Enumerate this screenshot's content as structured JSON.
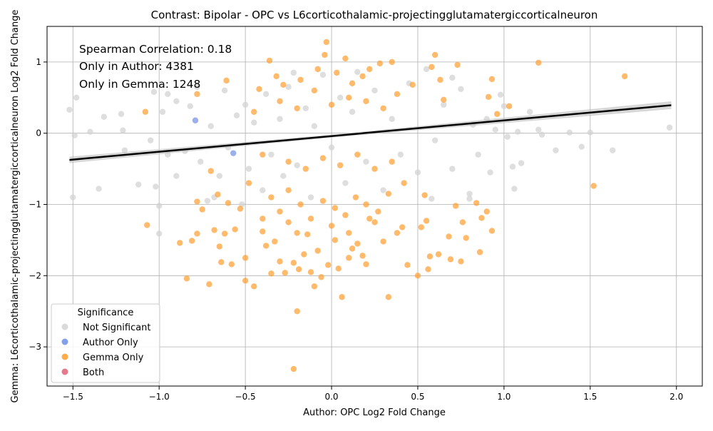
{
  "chart_data": {
    "type": "scatter",
    "title": "Contrast: Bipolar - OPC vs L6corticothalamic-projectingglutamatergiccorticalneuron",
    "xlabel": "Author: OPC Log2 Fold Change",
    "ylabel": "Gemma: L6corticothalamic-projectingglutamatergiccorticalneuron Log2 Fold Change",
    "xlim": [
      -1.65,
      2.15
    ],
    "ylim": [
      -3.55,
      1.5
    ],
    "xticks": [
      -1.5,
      -1.0,
      -0.5,
      0.0,
      0.5,
      1.0,
      1.5,
      2.0
    ],
    "xtick_labels": [
      "−1.5",
      "−1.0",
      "−0.5",
      "0.0",
      "0.5",
      "1.0",
      "1.5",
      "2.0"
    ],
    "yticks": [
      -3,
      -2,
      -1,
      0,
      1
    ],
    "ytick_labels": [
      "−3",
      "−2",
      "−1",
      "0",
      "1"
    ],
    "grid": true,
    "annotations": [
      "Spearman Correlation: 0.18",
      "Only in Author: 4381",
      "Only in Gemma: 1248"
    ],
    "legend": {
      "title": "Significance",
      "placement": "lower-left",
      "entries": [
        {
          "label": "Not Significant",
          "color": "#d3d3d3"
        },
        {
          "label": "Author Only",
          "color": "#6f8fe6"
        },
        {
          "label": "Gemma Only",
          "color": "#ff9d2e"
        },
        {
          "label": "Both",
          "color": "#e06377"
        }
      ]
    },
    "regression": {
      "slope": 0.22,
      "intercept": -0.04,
      "x_range": [
        -1.52,
        1.97
      ],
      "color": "#000000",
      "band_color": "#bdbdbd"
    },
    "series": [
      {
        "name": "Not Significant",
        "color": "#d3d3d3",
        "points": [
          [
            -1.52,
            0.33
          ],
          [
            -1.48,
            0.5
          ],
          [
            -1.5,
            -0.9
          ],
          [
            -1.49,
            -0.03
          ],
          [
            -1.4,
            0.02
          ],
          [
            -1.32,
            0.23
          ],
          [
            -1.35,
            -0.78
          ],
          [
            -1.22,
            0.27
          ],
          [
            -1.21,
            0.04
          ],
          [
            -1.2,
            -0.24
          ],
          [
            -1.12,
            -0.72
          ],
          [
            -1.05,
            -0.1
          ],
          [
            -1.03,
            0.58
          ],
          [
            -1.02,
            -0.75
          ],
          [
            -1.0,
            -1.02
          ],
          [
            -1.0,
            -1.41
          ],
          [
            -0.98,
            0.3
          ],
          [
            -0.95,
            -0.3
          ],
          [
            -0.9,
            0.45
          ],
          [
            -0.85,
            -0.25
          ],
          [
            -0.82,
            0.38
          ],
          [
            -0.78,
            0.65
          ],
          [
            -0.76,
            -0.4
          ],
          [
            -0.7,
            0.1
          ],
          [
            -0.68,
            -0.9
          ],
          [
            -0.65,
            -0.6
          ],
          [
            -0.62,
            0.6
          ],
          [
            -0.6,
            -0.2
          ],
          [
            -0.55,
            0.25
          ],
          [
            -0.52,
            -1.0
          ],
          [
            -0.5,
            0.4
          ],
          [
            -0.48,
            -0.5
          ],
          [
            -0.45,
            0.15
          ],
          [
            -0.4,
            -0.8
          ],
          [
            -0.38,
            0.55
          ],
          [
            -0.35,
            -0.3
          ],
          [
            -0.3,
            0.2
          ],
          [
            -0.28,
            -0.6
          ],
          [
            -0.25,
            0.65
          ],
          [
            -0.22,
            0.85
          ],
          [
            -0.2,
            -0.45
          ],
          [
            -0.15,
            0.35
          ],
          [
            -0.12,
            -0.9
          ],
          [
            -0.1,
            0.1
          ],
          [
            -0.05,
            0.82
          ],
          [
            0.0,
            -0.2
          ],
          [
            0.05,
            0.5
          ],
          [
            0.08,
            -0.7
          ],
          [
            0.12,
            0.3
          ],
          [
            0.15,
            0.86
          ],
          [
            0.2,
            -0.4
          ],
          [
            0.25,
            0.6
          ],
          [
            0.3,
            -0.8
          ],
          [
            0.35,
            0.2
          ],
          [
            0.4,
            -0.3
          ],
          [
            0.45,
            0.7
          ],
          [
            0.5,
            -0.55
          ],
          [
            0.55,
            0.9
          ],
          [
            0.6,
            -0.1
          ],
          [
            0.65,
            0.4
          ],
          [
            0.7,
            -0.5
          ],
          [
            0.75,
            0.62
          ],
          [
            0.8,
            -0.85
          ],
          [
            0.82,
            0.12
          ],
          [
            0.85,
            -0.3
          ],
          [
            0.9,
            0.2
          ],
          [
            0.92,
            -0.55
          ],
          [
            0.95,
            0.05
          ],
          [
            0.98,
            0.54
          ],
          [
            1.0,
            0.38
          ],
          [
            1.02,
            -0.05
          ],
          [
            1.05,
            -0.47
          ],
          [
            1.06,
            -0.78
          ],
          [
            1.08,
            0.02
          ],
          [
            1.1,
            -0.42
          ],
          [
            1.15,
            0.3
          ],
          [
            1.2,
            0.05
          ],
          [
            1.22,
            -0.02
          ],
          [
            1.3,
            -0.24
          ],
          [
            1.38,
            0.01
          ],
          [
            1.45,
            -0.19
          ],
          [
            1.5,
            0.01
          ],
          [
            1.63,
            -0.24
          ],
          [
            1.96,
            0.08
          ],
          [
            0.8,
            -0.92
          ],
          [
            -0.9,
            -0.6
          ],
          [
            -0.95,
            0.55
          ],
          [
            0.7,
            0.78
          ],
          [
            0.58,
            -0.92
          ],
          [
            -0.72,
            -0.95
          ]
        ]
      },
      {
        "name": "Author Only",
        "color": "#6f8fe6",
        "points": [
          [
            -0.79,
            0.18
          ],
          [
            -0.57,
            -0.28
          ]
        ]
      },
      {
        "name": "Gemma Only",
        "color": "#ff9d2e",
        "points": [
          [
            -1.08,
            0.3
          ],
          [
            -1.07,
            -1.29
          ],
          [
            -0.88,
            -1.54
          ],
          [
            -0.84,
            -2.04
          ],
          [
            -0.81,
            -1.51
          ],
          [
            -0.78,
            -1.41
          ],
          [
            -0.78,
            0.55
          ],
          [
            -0.78,
            -0.96
          ],
          [
            -0.75,
            -1.07
          ],
          [
            -0.71,
            -2.12
          ],
          [
            -0.7,
            -0.53
          ],
          [
            -0.68,
            -1.36
          ],
          [
            -0.66,
            -0.86
          ],
          [
            -0.65,
            -1.59
          ],
          [
            -0.64,
            -1.81
          ],
          [
            -0.62,
            -1.41
          ],
          [
            -0.61,
            0.74
          ],
          [
            -0.6,
            -0.98
          ],
          [
            -0.58,
            -1.84
          ],
          [
            -0.56,
            -1.35
          ],
          [
            -0.53,
            -1.06
          ],
          [
            -0.5,
            -2.07
          ],
          [
            -0.5,
            -1.75
          ],
          [
            -0.45,
            -2.15
          ],
          [
            -0.42,
            0.62
          ],
          [
            -0.4,
            -1.38
          ],
          [
            -0.38,
            -1.58
          ],
          [
            -0.36,
            1.02
          ],
          [
            -0.35,
            -1.97
          ],
          [
            -0.33,
            -1.52
          ],
          [
            -0.3,
            -1.8
          ],
          [
            -0.28,
            0.68
          ],
          [
            -0.27,
            -1.96
          ],
          [
            -0.25,
            -1.25
          ],
          [
            -0.22,
            -3.31
          ],
          [
            -0.22,
            -1.82
          ],
          [
            -0.2,
            -2.5
          ],
          [
            -0.19,
            -1.91
          ],
          [
            -0.16,
            -1.7
          ],
          [
            -0.14,
            -1.42
          ],
          [
            -0.12,
            -1.95
          ],
          [
            -0.1,
            -2.15
          ],
          [
            -0.08,
            -1.65
          ],
          [
            -0.06,
            -2.02
          ],
          [
            -0.04,
            1.1
          ],
          [
            -0.03,
            1.28
          ],
          [
            -0.02,
            -1.85
          ],
          [
            0.02,
            -1.5
          ],
          [
            0.04,
            -1.9
          ],
          [
            0.06,
            -2.3
          ],
          [
            0.08,
            1.05
          ],
          [
            0.1,
            -1.75
          ],
          [
            0.12,
            -1.62
          ],
          [
            0.15,
            -1.55
          ],
          [
            0.18,
            -1.72
          ],
          [
            0.2,
            -1.84
          ],
          [
            0.22,
            0.9
          ],
          [
            0.25,
            -1.25
          ],
          [
            0.28,
            0.98
          ],
          [
            0.3,
            -1.52
          ],
          [
            0.33,
            -2.3
          ],
          [
            0.35,
            1.0
          ],
          [
            0.38,
            -1.4
          ],
          [
            0.41,
            -1.32
          ],
          [
            0.44,
            -1.85
          ],
          [
            0.47,
            0.68
          ],
          [
            0.5,
            -2.0
          ],
          [
            0.52,
            -1.32
          ],
          [
            0.54,
            -0.87
          ],
          [
            0.55,
            -1.23
          ],
          [
            0.56,
            -1.91
          ],
          [
            0.57,
            -1.73
          ],
          [
            0.58,
            0.93
          ],
          [
            0.6,
            1.1
          ],
          [
            0.62,
            -1.7
          ],
          [
            0.63,
            0.75
          ],
          [
            0.65,
            0.47
          ],
          [
            0.68,
            -1.45
          ],
          [
            0.69,
            -1.77
          ],
          [
            0.72,
            -1.02
          ],
          [
            0.73,
            0.96
          ],
          [
            0.75,
            -1.8
          ],
          [
            0.76,
            -1.25
          ],
          [
            0.78,
            -1.47
          ],
          [
            0.84,
            -0.98
          ],
          [
            0.86,
            -1.67
          ],
          [
            0.87,
            -1.19
          ],
          [
            0.9,
            -1.1
          ],
          [
            0.91,
            0.51
          ],
          [
            0.93,
            0.76
          ],
          [
            0.93,
            -1.37
          ],
          [
            0.96,
            0.27
          ],
          [
            1.03,
            0.38
          ],
          [
            1.2,
            0.99
          ],
          [
            1.52,
            -0.74
          ],
          [
            1.7,
            0.8
          ],
          [
            -0.45,
            0.3
          ],
          [
            -0.4,
            -0.3
          ],
          [
            -0.3,
            0.45
          ],
          [
            -0.25,
            -0.4
          ],
          [
            -0.2,
            0.35
          ],
          [
            -0.15,
            -0.5
          ],
          [
            -0.1,
            0.6
          ],
          [
            -0.05,
            -0.35
          ],
          [
            0.0,
            0.4
          ],
          [
            0.05,
            -0.45
          ],
          [
            0.1,
            0.5
          ],
          [
            0.15,
            -0.3
          ],
          [
            0.2,
            0.45
          ],
          [
            0.25,
            -0.5
          ],
          [
            0.3,
            0.35
          ],
          [
            0.35,
            -0.4
          ],
          [
            -0.35,
            -0.9
          ],
          [
            -0.3,
            -1.1
          ],
          [
            -0.25,
            -0.8
          ],
          [
            -0.18,
            -1.0
          ],
          [
            -0.12,
            -1.2
          ],
          [
            -0.05,
            -0.95
          ],
          [
            0.02,
            -1.05
          ],
          [
            0.08,
            -1.15
          ],
          [
            0.14,
            -0.9
          ],
          [
            0.2,
            -1.0
          ],
          [
            0.27,
            -1.1
          ],
          [
            0.33,
            -0.85
          ],
          [
            -0.32,
            0.8
          ],
          [
            -0.18,
            0.75
          ],
          [
            -0.08,
            0.9
          ],
          [
            0.03,
            0.85
          ],
          [
            0.12,
            0.7
          ],
          [
            0.18,
            0.8
          ],
          [
            0.38,
            0.55
          ],
          [
            -0.4,
            -1.2
          ],
          [
            -0.2,
            -1.4
          ],
          [
            0.0,
            -1.3
          ],
          [
            0.1,
            -1.4
          ],
          [
            0.22,
            -1.2
          ],
          [
            -0.48,
            -0.7
          ],
          [
            0.42,
            -0.7
          ]
        ]
      },
      {
        "name": "Both",
        "color": "#e06377",
        "points": []
      }
    ]
  }
}
